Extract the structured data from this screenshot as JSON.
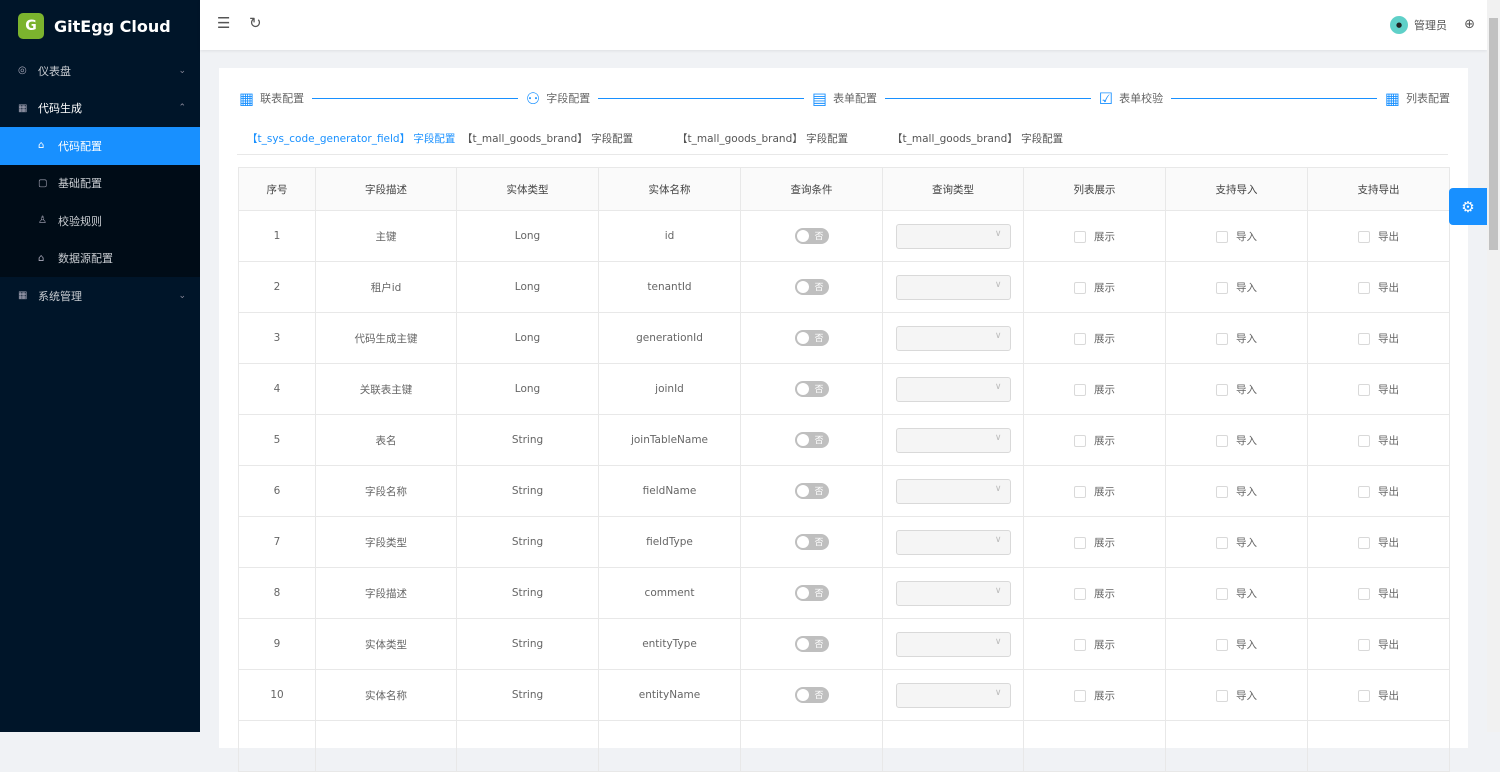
{
  "app": {
    "title": "GitEgg Cloud"
  },
  "sidebar": {
    "items": [
      {
        "label": "仪表盘",
        "icon": "dashboard-icon"
      },
      {
        "label": "代码生成",
        "icon": "appstore-icon",
        "children": [
          {
            "label": "代码配置",
            "icon": "lock-icon",
            "active": true
          },
          {
            "label": "基础配置",
            "icon": "book-icon"
          },
          {
            "label": "校验规则",
            "icon": "user-check-icon"
          },
          {
            "label": "数据源配置",
            "icon": "lock-icon"
          }
        ]
      },
      {
        "label": "系统管理",
        "icon": "appstore-icon"
      }
    ]
  },
  "header": {
    "user": "管理员"
  },
  "steps": [
    "联表配置",
    "字段配置",
    "表单配置",
    "表单校验",
    "列表配置"
  ],
  "tabs": [
    "【t_sys_code_generator_field】 字段配置",
    "【t_mall_goods_brand】 字段配置",
    "【t_mall_goods_brand】 字段配置",
    "【t_mall_goods_brand】 字段配置"
  ],
  "table": {
    "columns": [
      "序号",
      "字段描述",
      "实体类型",
      "实体名称",
      "查询条件",
      "查询类型",
      "列表展示",
      "支持导入",
      "支持导出"
    ],
    "switch_label": "否",
    "show_label": "展示",
    "import_label": "导入",
    "export_label": "导出",
    "rows": [
      [
        "1",
        "主键",
        "Long",
        "id"
      ],
      [
        "2",
        "租户id",
        "Long",
        "tenantId"
      ],
      [
        "3",
        "代码生成主键",
        "Long",
        "generationId"
      ],
      [
        "4",
        "关联表主键",
        "Long",
        "joinId"
      ],
      [
        "5",
        "表名",
        "String",
        "joinTableName"
      ],
      [
        "6",
        "字段名称",
        "String",
        "fieldName"
      ],
      [
        "7",
        "字段类型",
        "String",
        "fieldType"
      ],
      [
        "8",
        "字段描述",
        "String",
        "comment"
      ],
      [
        "9",
        "实体类型",
        "String",
        "entityType"
      ],
      [
        "10",
        "实体名称",
        "String",
        "entityName"
      ],
      [
        "",
        "",
        "",
        ""
      ]
    ]
  }
}
